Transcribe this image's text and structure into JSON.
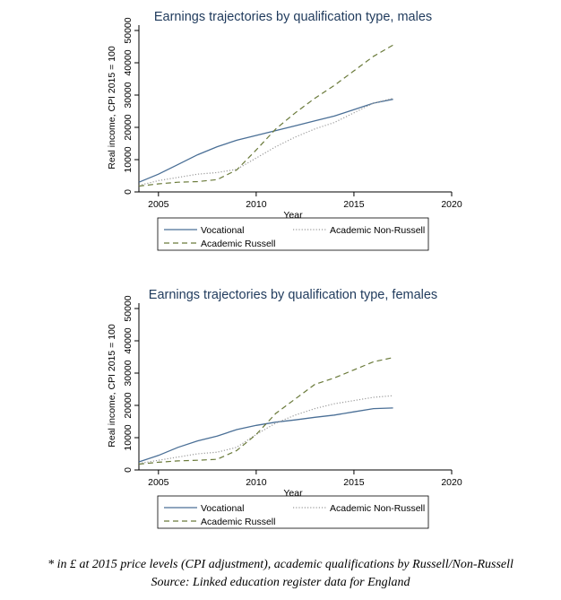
{
  "chart_data": [
    {
      "type": "line",
      "title": "Earnings trajectories by qualification type, males",
      "xlabel": "Year",
      "ylabel": "Real income, CPI 2015 = 100",
      "xlim": [
        2004,
        2020
      ],
      "ylim": [
        0,
        50000
      ],
      "xticks": [
        2005,
        2010,
        2015,
        2020
      ],
      "yticks": [
        0,
        10000,
        20000,
        30000,
        40000,
        50000
      ],
      "grid": false,
      "legend_position": "bottom",
      "series": [
        {
          "name": "Vocational",
          "color": "#4a6f96",
          "dash": "solid",
          "x": [
            2004,
            2005,
            2006,
            2007,
            2008,
            2009,
            2010,
            2011,
            2012,
            2013,
            2014,
            2015,
            2016,
            2017
          ],
          "y": [
            3000,
            5500,
            8500,
            11500,
            14000,
            16000,
            17500,
            19000,
            20500,
            22000,
            23500,
            25500,
            27500,
            28700
          ]
        },
        {
          "name": "Academic Non-Russell",
          "color": "#9a9a9a",
          "dash": "dotted",
          "x": [
            2004,
            2005,
            2006,
            2007,
            2008,
            2009,
            2010,
            2011,
            2012,
            2013,
            2014,
            2015,
            2016,
            2017
          ],
          "y": [
            2000,
            3500,
            4500,
            5500,
            6000,
            7000,
            10500,
            14000,
            17000,
            19500,
            21500,
            24500,
            27500,
            29000
          ]
        },
        {
          "name": "Academic Russell",
          "color": "#6a7a3a",
          "dash": "dashed",
          "x": [
            2004,
            2005,
            2006,
            2007,
            2008,
            2009,
            2010,
            2011,
            2012,
            2013,
            2014,
            2015,
            2016,
            2017
          ],
          "y": [
            1800,
            2500,
            3000,
            3200,
            3800,
            6800,
            13000,
            19500,
            24500,
            29000,
            33000,
            37500,
            42000,
            45500
          ]
        }
      ]
    },
    {
      "type": "line",
      "title": "Earnings trajectories by qualification type, females",
      "xlabel": "Year",
      "ylabel": "Real income, CPI 2015 = 100",
      "xlim": [
        2004,
        2020
      ],
      "ylim": [
        0,
        50000
      ],
      "xticks": [
        2005,
        2010,
        2015,
        2020
      ],
      "yticks": [
        0,
        10000,
        20000,
        30000,
        40000,
        50000
      ],
      "grid": false,
      "legend_position": "bottom",
      "series": [
        {
          "name": "Vocational",
          "color": "#4a6f96",
          "dash": "solid",
          "x": [
            2004,
            2005,
            2006,
            2007,
            2008,
            2009,
            2010,
            2011,
            2012,
            2013,
            2014,
            2015,
            2016,
            2017
          ],
          "y": [
            2500,
            4500,
            7000,
            9000,
            10500,
            12500,
            13800,
            14800,
            15500,
            16300,
            17000,
            18000,
            19000,
            19200
          ]
        },
        {
          "name": "Academic Non-Russell",
          "color": "#9a9a9a",
          "dash": "dotted",
          "x": [
            2004,
            2005,
            2006,
            2007,
            2008,
            2009,
            2010,
            2011,
            2012,
            2013,
            2014,
            2015,
            2016,
            2017
          ],
          "y": [
            2000,
            3000,
            4000,
            5000,
            5500,
            7000,
            11000,
            14500,
            17000,
            19000,
            20500,
            21500,
            22500,
            23000
          ]
        },
        {
          "name": "Academic Russell",
          "color": "#6a7a3a",
          "dash": "dashed",
          "x": [
            2004,
            2005,
            2006,
            2007,
            2008,
            2009,
            2010,
            2011,
            2012,
            2013,
            2014,
            2015,
            2016,
            2017
          ],
          "y": [
            1800,
            2400,
            2800,
            3000,
            3300,
            6000,
            11000,
            17500,
            22000,
            26500,
            28500,
            31000,
            33500,
            34800
          ]
        }
      ]
    }
  ],
  "footnote": {
    "line1": "* in £ at 2015 price levels (CPI adjustment), academic qualifications by Russell/Non-Russell",
    "line2": "Source: Linked education register data for England"
  }
}
